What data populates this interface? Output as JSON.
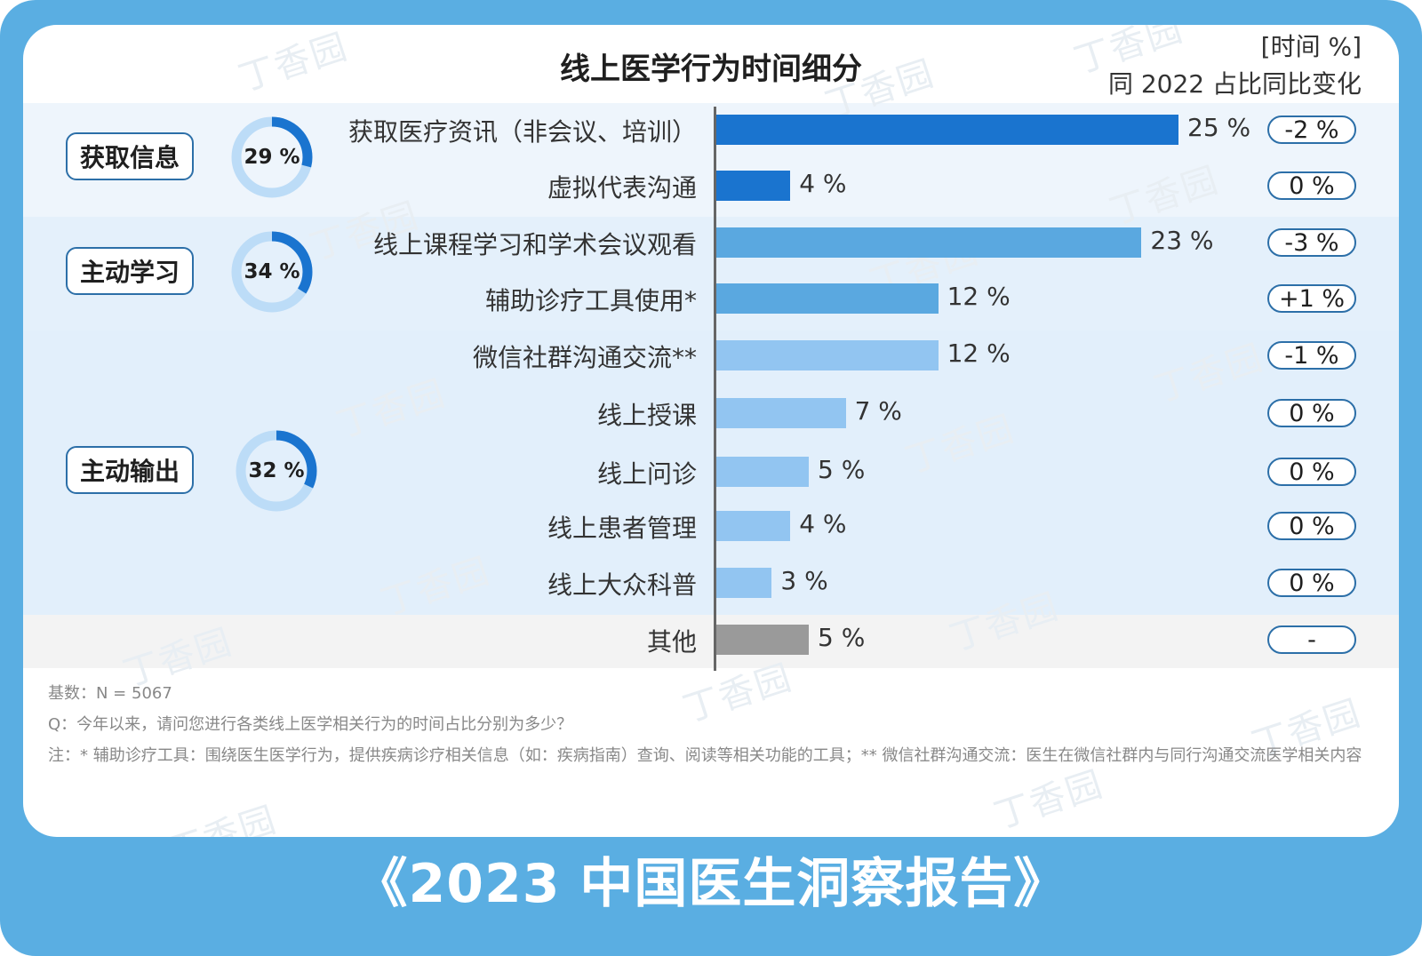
{
  "header": {
    "title": "线上医学行为时间细分",
    "unit_note": "[时间 %]",
    "change_note": "同 2022 占比同比变化"
  },
  "groups": [
    {
      "label": "获取信息",
      "share": "29 %",
      "share_value": 29
    },
    {
      "label": "主动学习",
      "share": "34 %",
      "share_value": 34
    },
    {
      "label": "主动输出",
      "share": "32 %",
      "share_value": 32
    }
  ],
  "chart_data": {
    "type": "bar",
    "orientation": "horizontal",
    "title": "线上医学行为时间细分",
    "categories": [
      "获取医疗资讯（非会议、培训）",
      "虚拟代表沟通",
      "线上课程学习和学术会议观看",
      "辅助诊疗工具使用*",
      "微信社群沟通交流**",
      "线上授课",
      "线上问诊",
      "线上患者管理",
      "线上大众科普",
      "其他"
    ],
    "values": [
      25,
      4,
      23,
      12,
      12,
      7,
      5,
      4,
      3,
      5
    ],
    "value_labels": [
      "25 %",
      "4 %",
      "23 %",
      "12 %",
      "12 %",
      "7 %",
      "5 %",
      "4 %",
      "3 %",
      "5 %"
    ],
    "yoy_change": [
      "-2 %",
      "0 %",
      "-3 %",
      "+1 %",
      "-1 %",
      "0 %",
      "0 %",
      "0 %",
      "0 %",
      "-"
    ],
    "groups": [
      "获取信息",
      "获取信息",
      "主动学习",
      "主动学习",
      "主动输出",
      "主动输出",
      "主动输出",
      "主动输出",
      "主动输出",
      "其他"
    ],
    "xlim": [
      0,
      25
    ],
    "colors": {
      "获取信息": "#1a74cf",
      "主动学习": "#5aa8e0",
      "主动输出": "#92c5f1",
      "其他": "#9a9a9a"
    }
  },
  "colors": {
    "frame": "#5aaee2",
    "band_info": "#eef5fc",
    "band_study": "#e4f0fb",
    "band_output": "#e2effb",
    "band_other": "#f3f3f3",
    "donut_track": "#bcdcf7",
    "donut_fill": "#1a74cf"
  },
  "notes": {
    "base": "基数：N = 5067",
    "question": "Q：今年以来，请问您进行各类线上医学相关行为的时间占比分别为多少？",
    "footnote": "注：* 辅助诊疗工具：围绕医生医学行为，提供疾病诊疗相关信息（如：疾病指南）查询、阅读等相关功能的工具；** 微信社群沟通交流：医生在微信社群内与同行沟通交流医学相关内容"
  },
  "footer": {
    "report_title": "《2023 中国医生洞察报告》"
  },
  "watermark": "丁香园"
}
